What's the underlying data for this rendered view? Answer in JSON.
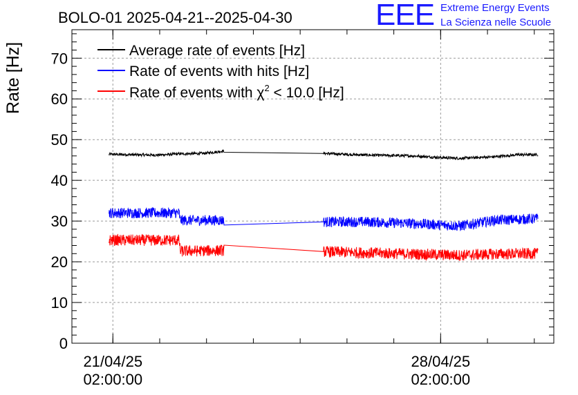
{
  "chart_data": {
    "type": "line",
    "title": "BOLO-01 2025-04-21--2025-04-30",
    "ylabel": "Rate [Hz]",
    "xlabel": "",
    "ylim": [
      0,
      77
    ],
    "yticks": [
      0,
      10,
      20,
      30,
      40,
      50,
      60,
      70
    ],
    "grid": true,
    "legend_position": "top-left",
    "xlim": [
      "2025-04-20T05:00:00",
      "2025-04-30T12:00:00"
    ],
    "xticks": [
      {
        "date": "2025-04-21T02:00:00",
        "label_date": "21/04/25",
        "label_time": "02:00:00"
      },
      {
        "date": "2025-04-28T02:00:00",
        "label_date": "28/04/25",
        "label_time": "02:00:00"
      }
    ],
    "gap": [
      "2025-04-23T11:00:00",
      "2025-04-25T14:00:00"
    ],
    "series": [
      {
        "name": "Average rate of events [Hz]",
        "color": "#000000",
        "noise": 0.35,
        "points": [
          [
            "2025-04-21T00:00:00",
            46.4
          ],
          [
            "2025-04-22T00:00:00",
            46.2
          ],
          [
            "2025-04-22T12:00:00",
            46.5
          ],
          [
            "2025-04-23T00:00:00",
            46.6
          ],
          [
            "2025-04-23T11:00:00",
            47.2
          ],
          [
            "2025-04-25T14:00:00",
            46.6
          ],
          [
            "2025-04-26T12:00:00",
            46.2
          ],
          [
            "2025-04-27T12:00:00",
            46.0
          ],
          [
            "2025-04-28T02:00:00",
            45.6
          ],
          [
            "2025-04-28T12:00:00",
            45.4
          ],
          [
            "2025-04-29T06:00:00",
            45.8
          ],
          [
            "2025-04-29T18:00:00",
            46.3
          ],
          [
            "2025-04-30T04:00:00",
            46.3
          ]
        ]
      },
      {
        "name": "Rate of events with hits [Hz]",
        "color": "#0000ff",
        "noise": 1.3,
        "points": [
          [
            "2025-04-21T00:00:00",
            32.0
          ],
          [
            "2025-04-22T12:00:00",
            32.0
          ],
          [
            "2025-04-22T12:30:00",
            30.2
          ],
          [
            "2025-04-23T11:00:00",
            30.2
          ],
          [
            "2025-04-25T14:00:00",
            29.8
          ],
          [
            "2025-04-26T12:00:00",
            29.8
          ],
          [
            "2025-04-27T12:00:00",
            29.4
          ],
          [
            "2025-04-28T12:00:00",
            28.8
          ],
          [
            "2025-04-29T06:00:00",
            30.2
          ],
          [
            "2025-04-30T04:00:00",
            30.6
          ]
        ]
      },
      {
        "name": "Rate of events with χ² < 10.0 [Hz]",
        "color": "#ff0000",
        "noise": 1.4,
        "points": [
          [
            "2025-04-21T00:00:00",
            25.3
          ],
          [
            "2025-04-22T12:00:00",
            25.3
          ],
          [
            "2025-04-22T12:30:00",
            22.6
          ],
          [
            "2025-04-23T11:00:00",
            22.8
          ],
          [
            "2025-04-25T14:00:00",
            22.5
          ],
          [
            "2025-04-26T12:00:00",
            22.2
          ],
          [
            "2025-04-27T12:00:00",
            21.9
          ],
          [
            "2025-04-28T12:00:00",
            21.6
          ],
          [
            "2025-04-29T06:00:00",
            21.9
          ],
          [
            "2025-04-30T04:00:00",
            22.0
          ]
        ]
      }
    ]
  },
  "legend": {
    "avg": "Average rate of events [Hz]",
    "hits": "Rate of events with hits [Hz]",
    "chi2_prefix": "Rate of events with χ",
    "chi2_sup": "2",
    "chi2_suffix": " < 10.0 [Hz]"
  },
  "logo": {
    "mark": "EEE",
    "line1": "Extreme Energy Events",
    "line2": "La Scienza nelle Scuole",
    "color": "#1a1aff"
  }
}
